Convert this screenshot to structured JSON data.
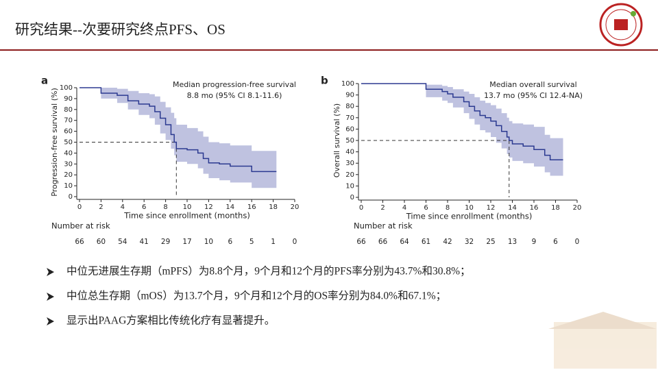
{
  "header": {
    "title": "研究结果--次要研究终点PFS、OS"
  },
  "chart_data": [
    {
      "type": "line",
      "step": true,
      "panel": "a",
      "annotation": [
        "Median progression-free survival",
        "8.8 mo (95% CI 8.1-11.6)"
      ],
      "x_label": "Time since enrollment (months)",
      "y_label": "Progression-free survival (%)",
      "xlim": [
        0,
        20
      ],
      "ylim": [
        0,
        100
      ],
      "xticks": [
        0,
        2,
        4,
        6,
        8,
        10,
        12,
        14,
        16,
        18,
        20
      ],
      "yticks": [
        0,
        10,
        20,
        30,
        40,
        50,
        60,
        70,
        80,
        90,
        100
      ],
      "x": [
        0,
        2,
        3.5,
        4.5,
        5.5,
        6.5,
        7,
        7.5,
        8,
        8.5,
        8.8,
        9,
        10,
        11,
        11.5,
        12,
        13,
        14,
        15,
        16,
        17,
        18.3
      ],
      "series": [
        {
          "color": "#2b3990",
          "values": [
            100,
            95,
            93,
            88,
            85,
            83,
            78,
            72,
            66,
            57,
            50,
            44,
            43,
            40,
            35,
            31,
            30,
            28,
            28,
            23,
            23,
            23
          ]
        }
      ],
      "band": {
        "color": "#a9aed6",
        "upper": [
          100,
          100,
          99,
          97,
          95,
          94,
          92,
          87,
          82,
          77,
          72,
          66,
          63,
          60,
          55,
          50,
          49,
          47,
          47,
          42,
          42,
          42
        ],
        "lower": [
          100,
          90,
          86,
          80,
          75,
          72,
          66,
          58,
          52,
          44,
          38,
          32,
          30,
          26,
          21,
          17,
          15,
          13,
          13,
          8,
          8,
          8
        ]
      },
      "median_line": [
        9,
        50
      ],
      "risk_label": "Number at risk",
      "risk_counts": [
        66,
        60,
        54,
        41,
        29,
        17,
        10,
        6,
        5,
        1,
        0
      ]
    },
    {
      "type": "line",
      "step": true,
      "panel": "b",
      "annotation": [
        "Median overall survival",
        "13.7 mo (95% CI 12.4-NA)"
      ],
      "x_label": "Time since enrollment (months)",
      "y_label": "Overall survival (%)",
      "xlim": [
        0,
        20
      ],
      "ylim": [
        0,
        100
      ],
      "xticks": [
        0,
        2,
        4,
        6,
        8,
        10,
        12,
        14,
        16,
        18,
        20
      ],
      "yticks": [
        0,
        10,
        20,
        30,
        40,
        50,
        60,
        70,
        80,
        90,
        100
      ],
      "x": [
        0,
        5,
        6,
        7.5,
        8,
        8.5,
        9.5,
        10,
        10.5,
        11,
        11.5,
        12,
        12.5,
        13,
        13.5,
        13.7,
        14,
        15,
        16,
        17,
        17.5,
        18.7
      ],
      "series": [
        {
          "color": "#2b3990",
          "values": [
            100,
            100,
            95,
            93,
            91,
            88,
            84,
            80,
            76,
            72,
            70,
            67,
            63,
            58,
            53,
            50,
            47,
            45,
            42,
            37,
            33,
            33
          ]
        }
      ],
      "band": {
        "color": "#a9aed6",
        "upper": [
          100,
          100,
          99,
          98,
          97,
          95,
          93,
          91,
          88,
          85,
          83,
          81,
          78,
          74,
          70,
          67,
          65,
          64,
          62,
          55,
          52,
          52
        ],
        "lower": [
          100,
          100,
          88,
          85,
          83,
          79,
          74,
          69,
          64,
          59,
          57,
          53,
          48,
          43,
          38,
          35,
          32,
          30,
          27,
          22,
          19,
          19
        ]
      },
      "median_line": [
        13.7,
        50
      ],
      "risk_label": "Number at risk",
      "risk_counts": [
        66,
        66,
        64,
        61,
        42,
        32,
        25,
        13,
        9,
        6,
        0
      ]
    }
  ],
  "bullets": [
    "中位无进展生存期（mPFS）为8.8个月，9个月和12个月的PFS率分别为43.7%和30.8%；",
    "中位总生存期（mOS）为13.7个月，9个月和12个月的OS率分别为84.0%和67.1%；",
    "显示出PAAG方案相比传统化疗有显著提升。"
  ]
}
